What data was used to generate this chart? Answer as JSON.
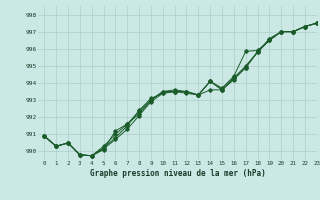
{
  "xlabel": "Graphe pression niveau de la mer (hPa)",
  "xlim": [
    -0.5,
    23
  ],
  "ylim": [
    989.5,
    998.5
  ],
  "yticks": [
    990,
    991,
    992,
    993,
    994,
    995,
    996,
    997,
    998
  ],
  "xticks": [
    0,
    1,
    2,
    3,
    4,
    5,
    6,
    7,
    8,
    9,
    10,
    11,
    12,
    13,
    14,
    15,
    16,
    17,
    18,
    19,
    20,
    21,
    22,
    23
  ],
  "bg_color": "#cce8e4",
  "grid_color": "#aaceca",
  "line_color": "#1a5c2a",
  "line1": [
    990.9,
    990.3,
    990.5,
    989.8,
    989.75,
    990.3,
    991.0,
    991.6,
    992.2,
    993.0,
    993.5,
    993.5,
    993.5,
    993.3,
    994.1,
    993.6,
    994.3,
    995.0,
    995.8,
    996.6,
    997.0,
    997.0,
    997.3,
    997.5
  ],
  "line2": [
    990.9,
    990.3,
    990.5,
    989.8,
    989.75,
    990.15,
    990.7,
    991.3,
    992.1,
    992.9,
    993.4,
    993.5,
    993.4,
    993.3,
    993.6,
    993.6,
    994.2,
    994.9,
    995.8,
    996.5,
    997.0,
    997.0,
    997.3,
    997.5
  ],
  "line3": [
    990.9,
    990.3,
    990.5,
    989.8,
    989.75,
    990.2,
    990.8,
    991.5,
    992.4,
    993.1,
    993.4,
    993.5,
    993.5,
    993.3,
    994.1,
    993.7,
    994.4,
    995.85,
    995.9,
    996.5,
    997.0,
    997.0,
    997.3,
    997.5
  ],
  "line4": [
    990.9,
    990.3,
    990.5,
    989.8,
    989.75,
    990.1,
    991.2,
    991.6,
    992.35,
    993.0,
    993.5,
    993.6,
    993.5,
    993.3,
    994.1,
    993.6,
    994.3,
    994.9,
    995.85,
    996.5,
    997.0,
    997.0,
    997.3,
    997.5
  ]
}
